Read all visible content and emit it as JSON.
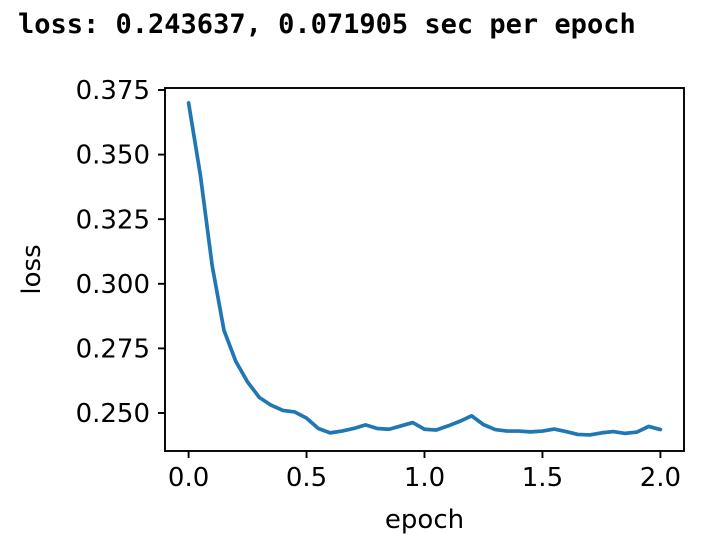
{
  "figure": {
    "title": "loss: 0.243637, 0.071905 sec per epoch"
  },
  "chart_data": {
    "type": "line",
    "title": "loss: 0.243637, 0.071905 sec per epoch",
    "xlabel": "epoch",
    "ylabel": "loss",
    "xlim": [
      -0.1,
      2.1
    ],
    "ylim": [
      0.23529,
      0.37577
    ],
    "xticks": [
      0.0,
      0.5,
      1.0,
      1.5,
      2.0
    ],
    "xtick_labels": [
      "0.0",
      "0.5",
      "1.0",
      "1.5",
      "2.0"
    ],
    "yticks": [
      0.25,
      0.275,
      0.3,
      0.325,
      0.35,
      0.375
    ],
    "ytick_labels": [
      "0.250",
      "0.275",
      "0.300",
      "0.325",
      "0.350",
      "0.375"
    ],
    "grid": false,
    "legend_position": "none",
    "line_color": "#1f77b4",
    "axis_color": "#000000",
    "final_loss": 0.243637,
    "sec_per_epoch": 0.071905,
    "series": [
      {
        "name": "loss",
        "x": [
          0.0,
          0.05,
          0.1,
          0.15,
          0.2,
          0.25,
          0.3,
          0.35,
          0.4,
          0.45,
          0.5,
          0.55,
          0.6,
          0.65,
          0.7,
          0.75,
          0.8,
          0.85,
          0.9,
          0.95,
          1.0,
          1.05,
          1.1,
          1.15,
          1.2,
          1.25,
          1.3,
          1.35,
          1.4,
          1.45,
          1.5,
          1.55,
          1.6,
          1.65,
          1.7,
          1.75,
          1.8,
          1.85,
          1.9,
          1.95,
          2.0
        ],
        "y": [
          0.37,
          0.342,
          0.307,
          0.282,
          0.27,
          0.262,
          0.256,
          0.253,
          0.251,
          0.2504,
          0.248,
          0.244,
          0.2423,
          0.243,
          0.244,
          0.2454,
          0.244,
          0.2437,
          0.245,
          0.2463,
          0.2437,
          0.2434,
          0.245,
          0.2468,
          0.2489,
          0.2455,
          0.2436,
          0.243,
          0.243,
          0.2427,
          0.243,
          0.2438,
          0.2428,
          0.2417,
          0.2415,
          0.2423,
          0.2428,
          0.2421,
          0.2426,
          0.2448,
          0.2436
        ]
      }
    ]
  }
}
